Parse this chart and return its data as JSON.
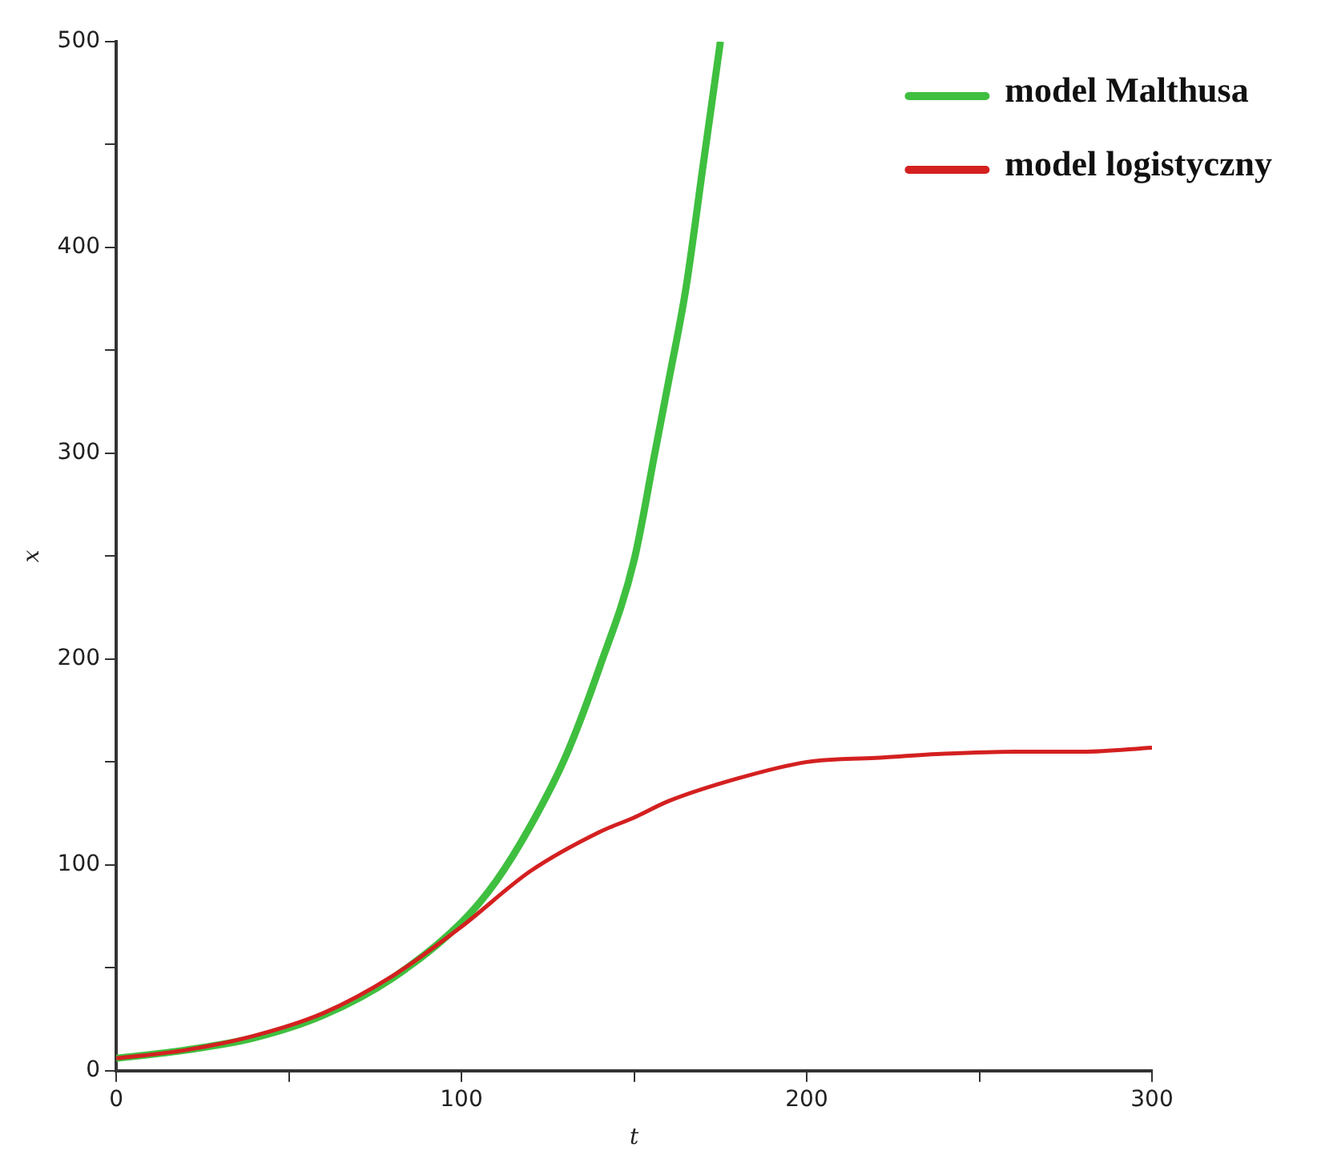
{
  "chart_data": {
    "type": "line",
    "xlabel": "t",
    "ylabel": "x",
    "xlim": [
      0,
      300
    ],
    "xticks": [
      0,
      {
        "value": 50,
        "label": null
      },
      100,
      {
        "value": 150,
        "label": null
      },
      200,
      {
        "value": 250,
        "label": null
      },
      300
    ],
    "ylim": [
      0,
      500
    ],
    "yticks": [
      0,
      {
        "value": 50,
        "label": null
      },
      100,
      {
        "value": 150,
        "label": null
      },
      200,
      {
        "value": 250,
        "label": null
      },
      300,
      {
        "value": 350,
        "label": null
      },
      400,
      {
        "value": 450,
        "label": null
      },
      500
    ],
    "grid": false,
    "legend": "top right",
    "marker": "none",
    "line_style": "solid",
    "series": [
      {
        "name": "model Malthusa",
        "color": "#3fbf3f",
        "x": [
          0,
          20,
          40,
          60,
          80,
          100,
          110,
          120,
          130,
          140,
          150,
          156,
          160,
          165,
          170,
          175
        ],
        "values": [
          6,
          10,
          16,
          27,
          45,
          72,
          92,
          119,
          152,
          196,
          248,
          300,
          335,
          380,
          440,
          500
        ]
      },
      {
        "name": "model logistyczny",
        "color": "#d42020",
        "x": [
          0,
          20,
          40,
          60,
          80,
          100,
          120,
          140,
          150,
          160,
          180,
          200,
          220,
          240,
          260,
          280,
          300
        ],
        "values": [
          6,
          10,
          17,
          28,
          46,
          70,
          97,
          116,
          123,
          131,
          142,
          150,
          152,
          154,
          155,
          155,
          157
        ]
      }
    ]
  }
}
